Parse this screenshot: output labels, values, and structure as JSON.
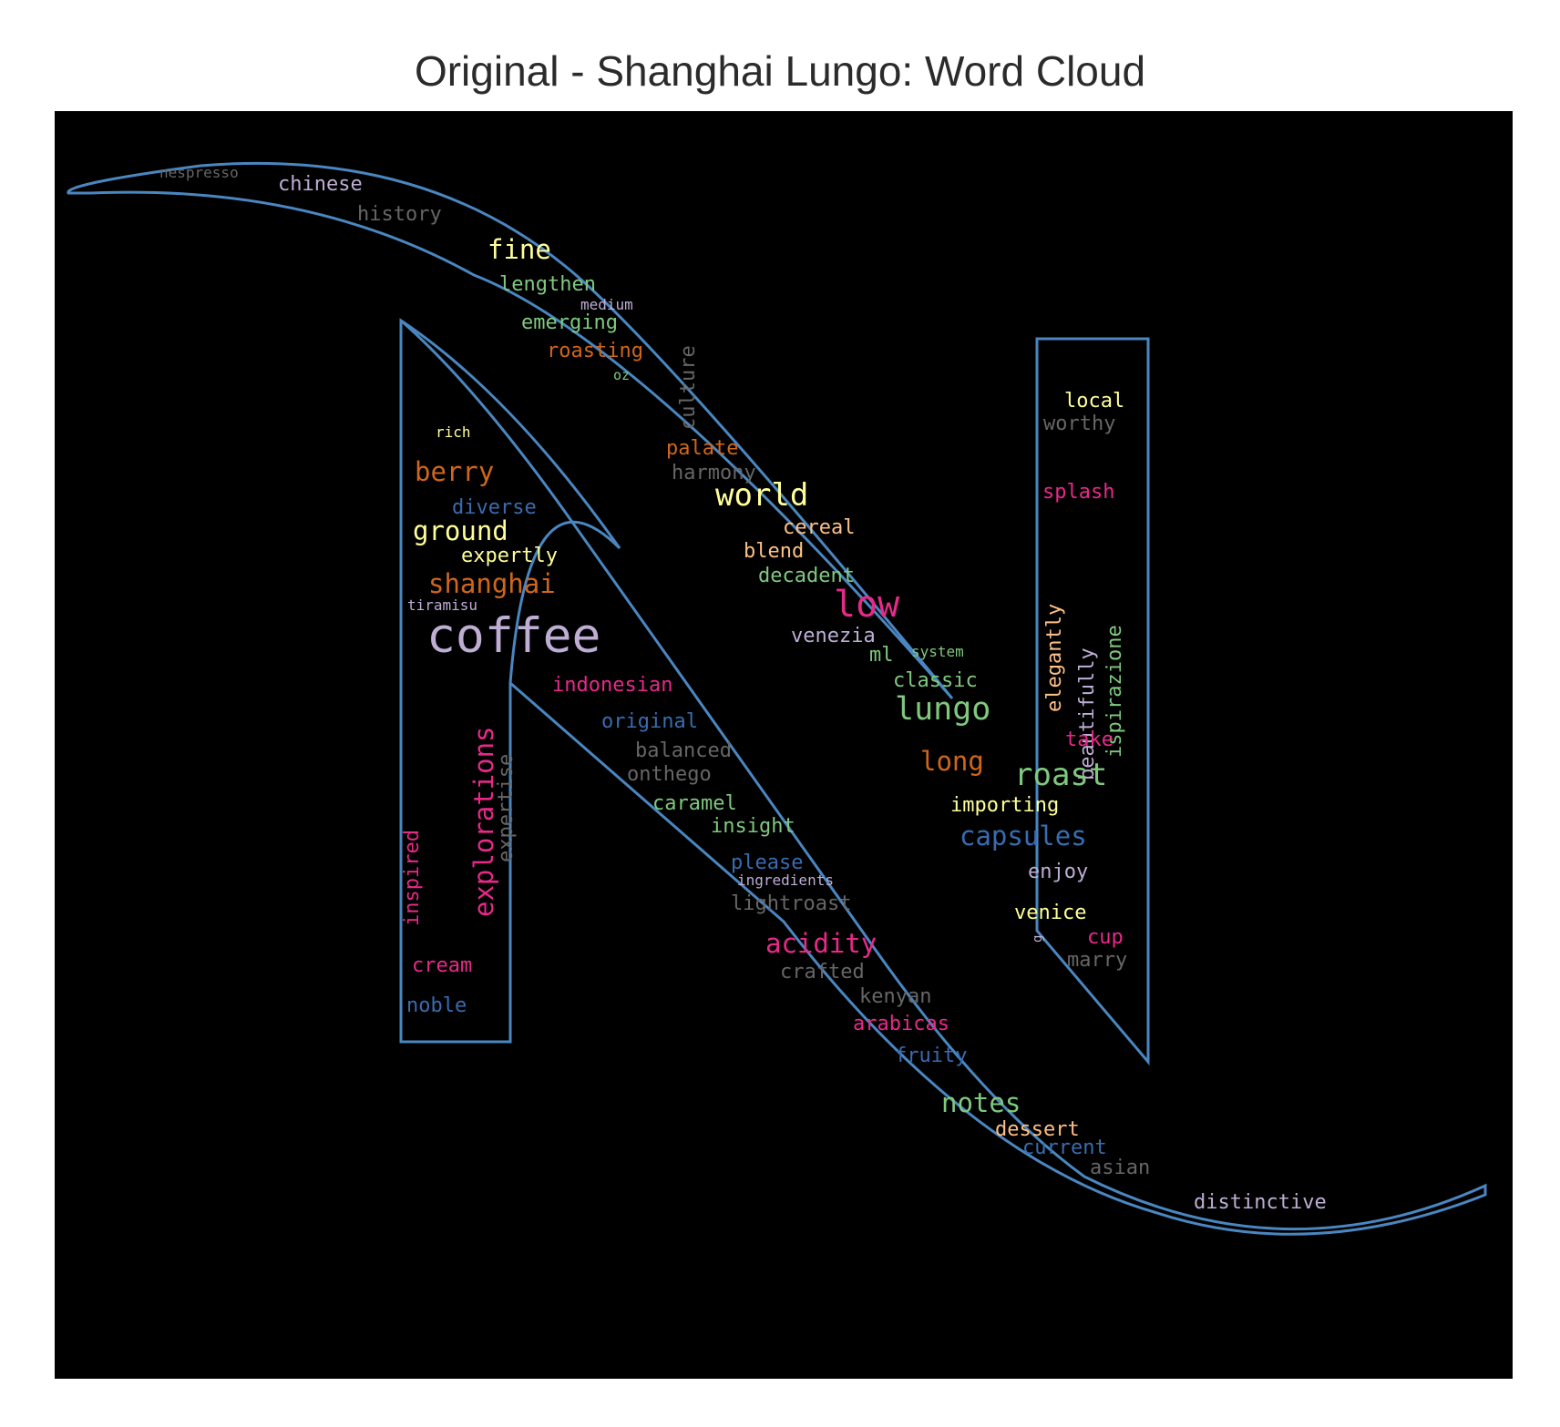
{
  "title": "Original - Shanghai Lungo: Word Cloud",
  "colors": {
    "background": "#000000",
    "outline": "#4a86c0",
    "pink": "#e7298a",
    "orange": "#d0661c",
    "green": "#7fc97f",
    "lavender": "#beaed4",
    "peach": "#fdc086",
    "yellow": "#ffff99",
    "blue": "#386cb0",
    "gray": "#666666"
  },
  "words": [
    {
      "text": "nespresso",
      "color": "gray",
      "weight": 0.2
    },
    {
      "text": "chinese",
      "color": "lavender",
      "weight": 0.27
    },
    {
      "text": "history",
      "color": "gray",
      "weight": 0.28
    },
    {
      "text": "fine",
      "color": "yellow",
      "weight": 0.36
    },
    {
      "text": "lengthen",
      "color": "green",
      "weight": 0.28
    },
    {
      "text": "medium",
      "color": "lavender",
      "weight": 0.2
    },
    {
      "text": "emerging",
      "color": "green",
      "weight": 0.28
    },
    {
      "text": "roasting",
      "color": "orange",
      "weight": 0.28
    },
    {
      "text": "oz",
      "color": "green",
      "weight": 0.19
    },
    {
      "text": "culture",
      "color": "gray",
      "weight": 0.27
    },
    {
      "text": "local",
      "color": "yellow",
      "weight": 0.27
    },
    {
      "text": "worthy",
      "color": "gray",
      "weight": 0.27
    },
    {
      "text": "rich",
      "color": "yellow",
      "weight": 0.2
    },
    {
      "text": "palate",
      "color": "orange",
      "weight": 0.27
    },
    {
      "text": "harmony",
      "color": "gray",
      "weight": 0.27
    },
    {
      "text": "berry",
      "color": "orange",
      "weight": 0.36
    },
    {
      "text": "splash",
      "color": "pink",
      "weight": 0.27
    },
    {
      "text": "world",
      "color": "yellow",
      "weight": 0.42
    },
    {
      "text": "diverse",
      "color": "blue",
      "weight": 0.27
    },
    {
      "text": "cereal",
      "color": "peach",
      "weight": 0.27
    },
    {
      "text": "ground",
      "color": "yellow",
      "weight": 0.36
    },
    {
      "text": "expertly",
      "color": "yellow",
      "weight": 0.28
    },
    {
      "text": "blend",
      "color": "peach",
      "weight": 0.27
    },
    {
      "text": "elegantly",
      "color": "peach",
      "weight": 0.28
    },
    {
      "text": "beautifully",
      "color": "lavender",
      "weight": 0.28
    },
    {
      "text": "ispirazione",
      "color": "green",
      "weight": 0.28
    },
    {
      "text": "decadent",
      "color": "green",
      "weight": 0.27
    },
    {
      "text": "shanghai",
      "color": "orange",
      "weight": 0.36
    },
    {
      "text": "low",
      "color": "pink",
      "weight": 0.5
    },
    {
      "text": "tiramisu",
      "color": "lavender",
      "weight": 0.2
    },
    {
      "text": "coffee",
      "color": "lavender",
      "weight": 0.66
    },
    {
      "text": "venezia",
      "color": "lavender",
      "weight": 0.27
    },
    {
      "text": "system",
      "color": "green",
      "weight": 0.2
    },
    {
      "text": "ml",
      "color": "green",
      "weight": 0.27
    },
    {
      "text": "classic",
      "color": "green",
      "weight": 0.27
    },
    {
      "text": "indonesian",
      "color": "pink",
      "weight": 0.27
    },
    {
      "text": "explorations",
      "color": "pink",
      "weight": 0.36
    },
    {
      "text": "lungo",
      "color": "green",
      "weight": 0.44
    },
    {
      "text": "expertise",
      "color": "gray",
      "weight": 0.27
    },
    {
      "text": "original",
      "color": "blue",
      "weight": 0.27
    },
    {
      "text": "take",
      "color": "pink",
      "weight": 0.27
    },
    {
      "text": "balanced",
      "color": "gray",
      "weight": 0.27
    },
    {
      "text": "long",
      "color": "orange",
      "weight": 0.36
    },
    {
      "text": "roast",
      "color": "green",
      "weight": 0.42
    },
    {
      "text": "onthego",
      "color": "gray",
      "weight": 0.27
    },
    {
      "text": "inspired",
      "color": "pink",
      "weight": 0.27
    },
    {
      "text": "caramel",
      "color": "green",
      "weight": 0.27
    },
    {
      "text": "importing",
      "color": "yellow",
      "weight": 0.27
    },
    {
      "text": "insight",
      "color": "green",
      "weight": 0.27
    },
    {
      "text": "capsules",
      "color": "blue",
      "weight": 0.36
    },
    {
      "text": "please",
      "color": "blue",
      "weight": 0.27
    },
    {
      "text": "ingredients",
      "color": "lavender",
      "weight": 0.2
    },
    {
      "text": "enjoy",
      "color": "lavender",
      "weight": 0.27
    },
    {
      "text": "lightroast",
      "color": "gray",
      "weight": 0.27
    },
    {
      "text": "venice",
      "color": "yellow",
      "weight": 0.27
    },
    {
      "text": "g",
      "color": "lavender",
      "weight": 0.17
    },
    {
      "text": "cup",
      "color": "pink",
      "weight": 0.27
    },
    {
      "text": "acidity",
      "color": "pink",
      "weight": 0.36
    },
    {
      "text": "cream",
      "color": "pink",
      "weight": 0.27
    },
    {
      "text": "marry",
      "color": "gray",
      "weight": 0.27
    },
    {
      "text": "crafted",
      "color": "gray",
      "weight": 0.27
    },
    {
      "text": "kenyan",
      "color": "gray",
      "weight": 0.27
    },
    {
      "text": "noble",
      "color": "blue",
      "weight": 0.27
    },
    {
      "text": "arabicas",
      "color": "pink",
      "weight": 0.27
    },
    {
      "text": "fruity",
      "color": "blue",
      "weight": 0.27
    },
    {
      "text": "notes",
      "color": "green",
      "weight": 0.36
    },
    {
      "text": "dessert",
      "color": "peach",
      "weight": 0.27
    },
    {
      "text": "current",
      "color": "blue",
      "weight": 0.27
    },
    {
      "text": "asian",
      "color": "gray",
      "weight": 0.27
    },
    {
      "text": "distinctive",
      "color": "lavender",
      "weight": 0.27
    }
  ]
}
